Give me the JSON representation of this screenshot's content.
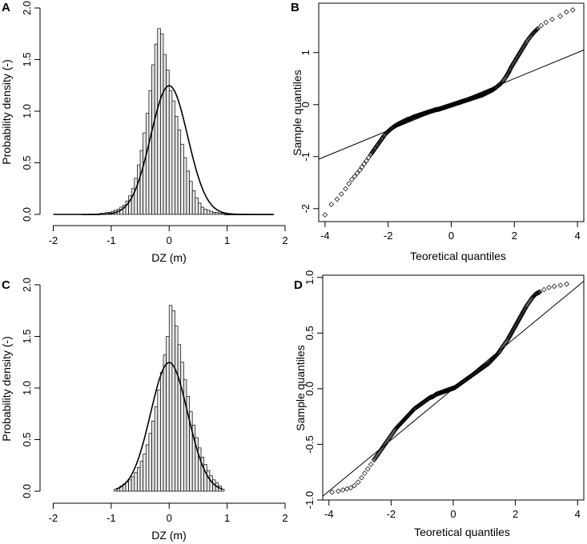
{
  "chart_data": [
    {
      "panel": "A",
      "type": "bar",
      "title": "",
      "xlabel": "DZ (m)",
      "ylabel": "Probability density (-)",
      "xlim": [
        -2.2,
        2.0
      ],
      "ylim": [
        0,
        2.0
      ],
      "xticks": [
        -2,
        -1,
        0,
        1,
        2
      ],
      "yticks": [
        "0.0",
        "0.5",
        "1.0",
        "1.5",
        "2.0"
      ],
      "bin_start": -1.5,
      "bin_width": 0.05,
      "values": [
        0.0,
        0.0,
        0.0,
        0.0,
        0.0,
        0.0,
        0.01,
        0.01,
        0.02,
        0.02,
        0.03,
        0.04,
        0.05,
        0.07,
        0.09,
        0.13,
        0.18,
        0.25,
        0.35,
        0.48,
        0.62,
        0.79,
        0.98,
        1.2,
        1.45,
        1.65,
        1.8,
        1.75,
        1.55,
        1.4,
        1.2,
        1.1,
        0.95,
        0.82,
        0.68,
        0.55,
        0.42,
        0.32,
        0.23,
        0.16,
        0.11,
        0.07,
        0.05,
        0.04,
        0.03,
        0.02,
        0.02,
        0.01,
        0.01,
        0.0,
        0.0,
        0.0,
        0.0,
        0.0,
        0.0,
        0.0,
        0.0,
        0.0,
        0.0,
        0.0,
        0.0,
        0.0,
        0.0,
        0.0,
        0.0,
        0.0
      ],
      "curve": {
        "type": "normal",
        "mean": 0.0,
        "sd": 0.32,
        "xrange": [
          -2.0,
          1.8
        ]
      }
    },
    {
      "panel": "B",
      "type": "scatter",
      "title": "",
      "xlabel": "Teoretical quantiles",
      "ylabel": "Sample quantiles",
      "xlim": [
        -4.2,
        4.2
      ],
      "ylim": [
        -2.25,
        1.95
      ],
      "xticks": [
        -4,
        -2,
        0,
        2,
        4
      ],
      "yticks": [
        -2,
        -1,
        0,
        1
      ],
      "reference_line": {
        "slope": 0.25,
        "intercept": 0.0
      },
      "points_x": [
        -4.0,
        -3.8,
        -3.62,
        -3.48,
        -3.35,
        -3.24,
        -3.15,
        -3.06,
        -2.98,
        -2.9,
        -2.83,
        -2.76,
        -2.69,
        -2.62,
        -2.55,
        -2.48,
        -2.41,
        -2.34,
        -2.27,
        -2.2,
        -2.13,
        -2.06,
        -1.99,
        -1.92,
        -1.85,
        -1.78,
        -1.7,
        -1.6,
        -1.5,
        -1.4,
        -1.3,
        -1.2,
        -1.1,
        -1.0,
        -0.9,
        -0.8,
        -0.7,
        -0.6,
        -0.5,
        -0.4,
        -0.3,
        -0.2,
        -0.1,
        0.0,
        0.1,
        0.2,
        0.3,
        0.4,
        0.5,
        0.6,
        0.7,
        0.8,
        0.9,
        1.0,
        1.1,
        1.2,
        1.3,
        1.4,
        1.5,
        1.58,
        1.66,
        1.74,
        1.82,
        1.9,
        1.98,
        2.06,
        2.14,
        2.22,
        2.3,
        2.38,
        2.46,
        2.55,
        2.64,
        2.74,
        2.85,
        3.0,
        3.2,
        3.45,
        3.65,
        3.85
      ],
      "points_y": [
        -2.12,
        -1.92,
        -1.82,
        -1.72,
        -1.62,
        -1.52,
        -1.44,
        -1.38,
        -1.32,
        -1.26,
        -1.2,
        -1.14,
        -1.08,
        -1.02,
        -0.96,
        -0.9,
        -0.84,
        -0.78,
        -0.72,
        -0.66,
        -0.6,
        -0.55,
        -0.51,
        -0.47,
        -0.44,
        -0.41,
        -0.38,
        -0.35,
        -0.32,
        -0.29,
        -0.27,
        -0.24,
        -0.22,
        -0.2,
        -0.18,
        -0.16,
        -0.14,
        -0.12,
        -0.1,
        -0.09,
        -0.07,
        -0.05,
        -0.03,
        -0.01,
        0.01,
        0.03,
        0.05,
        0.07,
        0.09,
        0.11,
        0.13,
        0.15,
        0.17,
        0.19,
        0.22,
        0.25,
        0.28,
        0.32,
        0.37,
        0.41,
        0.47,
        0.54,
        0.62,
        0.72,
        0.8,
        0.88,
        0.96,
        1.04,
        1.12,
        1.2,
        1.27,
        1.34,
        1.4,
        1.46,
        1.52,
        1.58,
        1.64,
        1.7,
        1.78,
        1.82
      ]
    },
    {
      "panel": "C",
      "type": "bar",
      "title": "",
      "xlabel": "DZ (m)",
      "ylabel": "Probability density (-)",
      "xlim": [
        -2.2,
        2.0
      ],
      "ylim": [
        0,
        2.0
      ],
      "xticks": [
        -2,
        -1,
        0,
        1,
        2
      ],
      "yticks": [
        "0.0",
        "0.5",
        "1.0",
        "1.5",
        "2.0"
      ],
      "bin_start": -0.95,
      "bin_width": 0.05,
      "values": [
        0.02,
        0.03,
        0.05,
        0.07,
        0.09,
        0.11,
        0.14,
        0.18,
        0.23,
        0.29,
        0.36,
        0.45,
        0.56,
        0.68,
        0.82,
        0.98,
        1.15,
        1.32,
        1.5,
        1.8,
        1.75,
        1.6,
        1.42,
        1.25,
        1.08,
        0.92,
        0.77,
        0.64,
        0.52,
        0.42,
        0.33,
        0.26,
        0.2,
        0.15,
        0.11,
        0.08,
        0.05,
        0.02
      ],
      "curve": {
        "type": "normal",
        "mean": 0.0,
        "sd": 0.32,
        "xrange": [
          -0.92,
          0.92
        ]
      }
    },
    {
      "panel": "D",
      "type": "scatter",
      "title": "",
      "xlabel": "Teoretical quantiles",
      "ylabel": "Sample quantiles",
      "xlim": [
        -4.2,
        4.2
      ],
      "ylim": [
        -1.0,
        1.02
      ],
      "xticks": [
        -4,
        -2,
        0,
        2,
        4
      ],
      "yticks": [
        "-1.0",
        "-0.5",
        "0.0",
        "0.5",
        "1.0"
      ],
      "reference_line": {
        "slope": 0.23,
        "intercept": 0.0
      },
      "points_x": [
        -3.9,
        -3.7,
        -3.55,
        -3.42,
        -3.3,
        -3.18,
        -3.06,
        -2.95,
        -2.85,
        -2.75,
        -2.65,
        -2.55,
        -2.45,
        -2.35,
        -2.25,
        -2.15,
        -2.05,
        -1.95,
        -1.85,
        -1.75,
        -1.65,
        -1.55,
        -1.45,
        -1.35,
        -1.25,
        -1.15,
        -1.05,
        -0.95,
        -0.85,
        -0.75,
        -0.65,
        -0.55,
        -0.45,
        -0.35,
        -0.25,
        -0.15,
        -0.05,
        0.05,
        0.15,
        0.25,
        0.35,
        0.45,
        0.55,
        0.65,
        0.75,
        0.85,
        0.95,
        1.05,
        1.15,
        1.25,
        1.35,
        1.45,
        1.55,
        1.65,
        1.75,
        1.85,
        1.95,
        2.05,
        2.15,
        2.25,
        2.35,
        2.45,
        2.55,
        2.65,
        2.78,
        2.92,
        3.08,
        3.25,
        3.45,
        3.65
      ],
      "points_y": [
        -0.93,
        -0.92,
        -0.91,
        -0.9,
        -0.89,
        -0.87,
        -0.84,
        -0.8,
        -0.76,
        -0.72,
        -0.68,
        -0.64,
        -0.6,
        -0.56,
        -0.52,
        -0.48,
        -0.44,
        -0.4,
        -0.36,
        -0.33,
        -0.3,
        -0.27,
        -0.24,
        -0.21,
        -0.18,
        -0.16,
        -0.14,
        -0.12,
        -0.1,
        -0.08,
        -0.07,
        -0.05,
        -0.04,
        -0.03,
        -0.02,
        -0.01,
        0.0,
        0.01,
        0.03,
        0.05,
        0.07,
        0.09,
        0.11,
        0.13,
        0.15,
        0.17,
        0.19,
        0.21,
        0.23,
        0.26,
        0.29,
        0.32,
        0.36,
        0.4,
        0.44,
        0.49,
        0.54,
        0.59,
        0.64,
        0.69,
        0.74,
        0.78,
        0.82,
        0.85,
        0.87,
        0.89,
        0.91,
        0.92,
        0.93,
        0.94
      ]
    }
  ]
}
